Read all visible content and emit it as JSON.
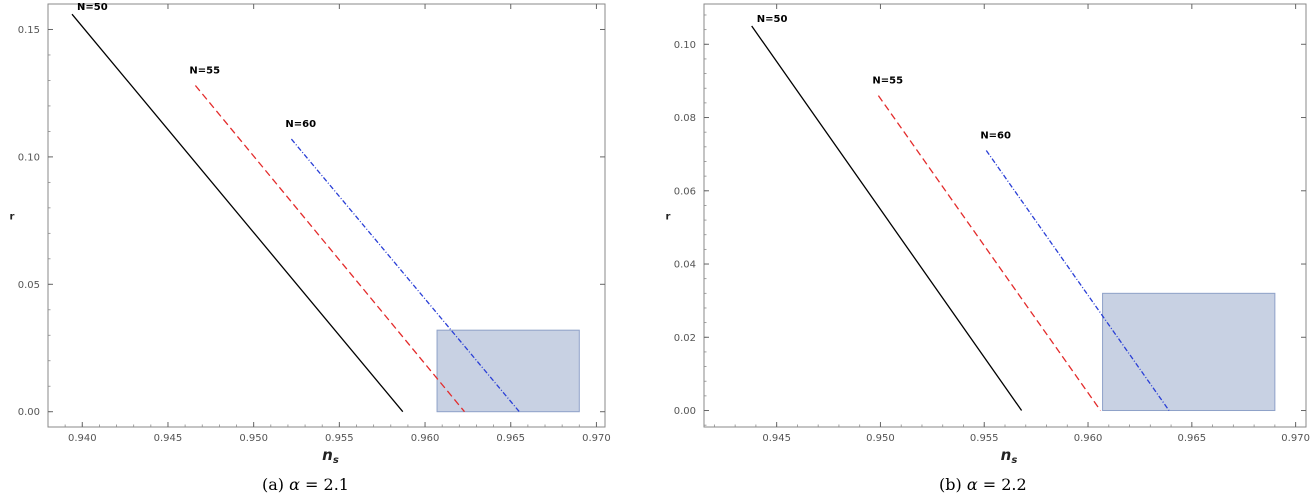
{
  "chart_data": [
    {
      "type": "line",
      "caption": "(a) α = 2.1",
      "caption_parts": {
        "prefix": "(a)",
        "symbol": "α",
        "rest": "= 2.1"
      },
      "xlabel": "n",
      "xlabel_sub": "s",
      "ylabel": "r",
      "xlim": [
        0.938,
        0.9705
      ],
      "ylim": [
        -0.006,
        0.16
      ],
      "xticks": [
        0.94,
        0.945,
        0.95,
        0.955,
        0.96,
        0.965,
        0.97
      ],
      "xtick_labels": [
        "0.940",
        "0.945",
        "0.950",
        "0.955",
        "0.960",
        "0.965",
        "0.970"
      ],
      "yticks": [
        0.0,
        0.05,
        0.1,
        0.15
      ],
      "ytick_labels": [
        "0.00",
        "0.05",
        "0.10",
        "0.15"
      ],
      "region": {
        "x": [
          0.9607,
          0.969
        ],
        "y": [
          0.0,
          0.032
        ],
        "color": "#c8d1e3",
        "stroke": "#8ea1c8"
      },
      "series": [
        {
          "name": "N=50",
          "color": "#000000",
          "style": "solid",
          "x": [
            0.9394,
            0.9587
          ],
          "y": [
            0.156,
            0.0
          ]
        },
        {
          "name": "N=55",
          "color": "#e32b2b",
          "style": "dashed",
          "x": [
            0.9466,
            0.9623
          ],
          "y": [
            0.128,
            0.0
          ]
        },
        {
          "name": "N=60",
          "color": "#2a3fd6",
          "style": "dashdot",
          "x": [
            0.9522,
            0.9655
          ],
          "y": [
            0.107,
            0.0
          ]
        }
      ]
    },
    {
      "type": "line",
      "caption": "(b) α = 2.2",
      "caption_parts": {
        "prefix": "(b)",
        "symbol": "α",
        "rest": "= 2.2"
      },
      "xlabel": "n",
      "xlabel_sub": "s",
      "ylabel": "r",
      "xlim": [
        0.9415,
        0.9705
      ],
      "ylim": [
        -0.0045,
        0.111
      ],
      "xticks": [
        0.945,
        0.95,
        0.955,
        0.96,
        0.965,
        0.97
      ],
      "xtick_labels": [
        "0.945",
        "0.950",
        "0.955",
        "0.960",
        "0.965",
        "0.970"
      ],
      "yticks": [
        0.0,
        0.02,
        0.04,
        0.06,
        0.08,
        0.1
      ],
      "ytick_labels": [
        "0.00",
        "0.02",
        "0.04",
        "0.06",
        "0.08",
        "0.10"
      ],
      "region": {
        "x": [
          0.9607,
          0.969
        ],
        "y": [
          0.0,
          0.032
        ],
        "color": "#c8d1e3",
        "stroke": "#8ea1c8"
      },
      "series": [
        {
          "name": "N=50",
          "color": "#000000",
          "style": "solid",
          "x": [
            0.9438,
            0.9568
          ],
          "y": [
            0.105,
            0.0
          ]
        },
        {
          "name": "N=55",
          "color": "#e32b2b",
          "style": "dashed",
          "x": [
            0.9499,
            0.9606
          ],
          "y": [
            0.086,
            0.0
          ]
        },
        {
          "name": "N=60",
          "color": "#2a3fd6",
          "style": "dashdot",
          "x": [
            0.9551,
            0.9639
          ],
          "y": [
            0.071,
            0.0
          ]
        }
      ]
    }
  ]
}
